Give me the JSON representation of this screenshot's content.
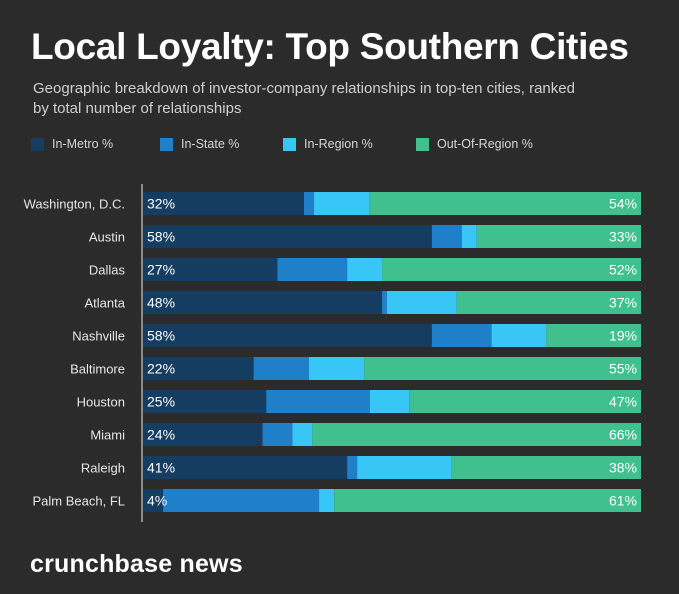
{
  "title": "Local Loyalty: Top Southern Cities",
  "subtitle": "Geographic breakdown of investor-company relationships in top-ten cities, ranked by total number of relationships",
  "brand": "crunchbase news",
  "colors": {
    "background": "#2b2b2b",
    "in_metro": "#153d61",
    "in_state": "#1f80c9",
    "in_region": "#38c6f7",
    "out_of_region": "#40c08f"
  },
  "chart_data": {
    "type": "bar",
    "orientation": "horizontal",
    "stacked": true,
    "normalized": true,
    "xlim": [
      0,
      100
    ],
    "categories": [
      "Washington, D.C.",
      "Austin",
      "Dallas",
      "Atlanta",
      "Nashville",
      "Baltimore",
      "Houston",
      "Miami",
      "Raleigh",
      "Palm Beach, FL"
    ],
    "series": [
      {
        "name": "In-Metro %",
        "color": "#153d61",
        "values": [
          32,
          58,
          27,
          48,
          58,
          22,
          25,
          24,
          41,
          4
        ]
      },
      {
        "name": "In-State %",
        "color": "#1f80c9",
        "values": [
          2,
          6,
          14,
          1,
          12,
          11,
          21,
          6,
          2,
          31
        ]
      },
      {
        "name": "In-Region %",
        "color": "#38c6f7",
        "values": [
          11,
          3,
          7,
          14,
          11,
          11,
          8,
          4,
          19,
          3
        ]
      },
      {
        "name": "Out-Of-Region %",
        "color": "#40c08f",
        "values": [
          54,
          33,
          52,
          37,
          19,
          55,
          47,
          66,
          38,
          61
        ]
      }
    ],
    "data_labels": {
      "left": [
        "32%",
        "58%",
        "27%",
        "48%",
        "58%",
        "22%",
        "25%",
        "24%",
        "41%",
        "4%"
      ],
      "right": [
        "54%",
        "33%",
        "52%",
        "37%",
        "19%",
        "55%",
        "47%",
        "66%",
        "38%",
        "61%"
      ]
    },
    "legend_position": "top-left",
    "grid": false
  }
}
